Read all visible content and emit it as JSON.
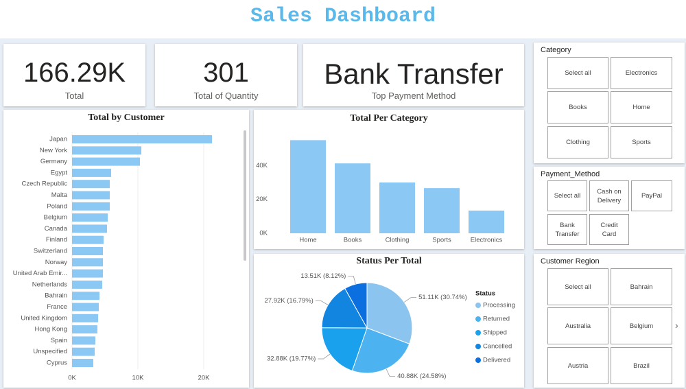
{
  "header": {
    "title": "Sales Dashboard"
  },
  "cards": [
    {
      "value": "166.29K",
      "label": "Total"
    },
    {
      "value": "301",
      "label": "Total of Quantity"
    },
    {
      "value": "Bank Transfer",
      "label": "Top Payment Method"
    }
  ],
  "slicers": [
    {
      "title": "Category",
      "items": [
        "Select all",
        "Electronics",
        "Books",
        "Home",
        "Clothing",
        "Sports"
      ]
    },
    {
      "title": "Payment_Method",
      "items": [
        "Select all",
        "Cash on Delivery",
        "PayPal",
        "Bank Transfer",
        "Credit Card"
      ]
    },
    {
      "title": "Customer Region",
      "items": [
        "Select all",
        "Bahrain",
        "Australia",
        "Belgium",
        "Austria",
        "Brazil"
      ]
    }
  ],
  "chart_data": [
    {
      "type": "hbar",
      "title": "Total by Customer",
      "categories": [
        "Japan",
        "New York",
        "Germany",
        "Egypt",
        "Czech Republic",
        "Malta",
        "Poland",
        "Belgium",
        "Canada",
        "Finland",
        "Switzerland",
        "Norway",
        "United Arab Emir...",
        "Netherlands",
        "Bahrain",
        "France",
        "United Kingdom",
        "Hong Kong",
        "Spain",
        "Unspecified",
        "Cyprus"
      ],
      "values": [
        21250,
        10520,
        10310,
        5940,
        5730,
        5730,
        5730,
        5420,
        5310,
        4790,
        4690,
        4690,
        4690,
        4580,
        4170,
        4060,
        3960,
        3850,
        3540,
        3440,
        3230
      ],
      "color": "#8cc8f4",
      "xlim": [
        0,
        25000
      ],
      "xticks": [
        {
          "value": 0,
          "label": "0K"
        },
        {
          "value": 10000,
          "label": "10K"
        },
        {
          "value": 20000,
          "label": "20K"
        }
      ],
      "grid": true
    },
    {
      "type": "bar",
      "title": "Total Per Category",
      "categories": [
        "Home",
        "Books",
        "Clothing",
        "Sports",
        "Electronics"
      ],
      "values": [
        55000,
        41300,
        30000,
        26700,
        13400
      ],
      "color": "#8cc8f4",
      "ylim": [
        0,
        60000
      ],
      "yticks": [
        {
          "value": 0,
          "label": "0K"
        },
        {
          "value": 20000,
          "label": "20K"
        },
        {
          "value": 40000,
          "label": "40K"
        }
      ],
      "grid": false
    },
    {
      "type": "pie",
      "title": "Status Per Total",
      "legend_title": "Status",
      "legend": "right",
      "categories": [
        "Processing",
        "Returned",
        "Shipped",
        "Cancelled",
        "Delivered"
      ],
      "values": [
        51110,
        40880,
        32880,
        27920,
        13510
      ],
      "value_labels": [
        "51.11K (30.74%)",
        "40.88K (24.58%)",
        "32.88K (19.77%)",
        "27.92K (16.79%)",
        "13.51K (8.12%)"
      ],
      "colors": [
        "#8cc4f0",
        "#4db3f0",
        "#1aa1ee",
        "#1185e0",
        "#0b6fe0"
      ]
    }
  ]
}
